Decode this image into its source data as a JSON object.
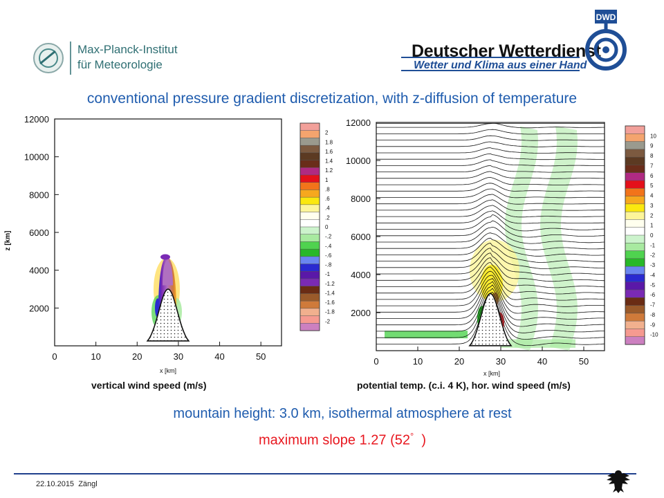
{
  "header": {
    "mpi_name_line1": "Max-Planck-Institut",
    "mpi_name_line2": "für Meteorologie",
    "dwd_name": "Deutscher Wetterdienst",
    "dwd_tagline": "Wetter und Klima aus einer Hand",
    "dwd_badge": "DWD"
  },
  "slide": {
    "title": "conventional pressure gradient discretization, with z-diffusion of temperature",
    "caption_left": "vertical wind speed (m/s)",
    "caption_right": "potential temp. (c.i. 4 K), hor. wind speed (m/s)",
    "info_line1": "mountain height: 3.0 km, isothermal atmosphere at rest",
    "info_line2_prefix": "maximum slope 1.27 (52",
    "info_line2_degree": "°",
    "info_line2_suffix": "  )"
  },
  "footer": {
    "date": "22.10.2015",
    "author": "Zängl"
  },
  "colors": {
    "title_blue": "#1f5cae",
    "highlight_red": "#e8171f",
    "dwd_blue": "#1f4e96",
    "mpi_teal": "#2f6f73"
  },
  "chart_data": [
    {
      "type": "heatmap",
      "panel": "left",
      "title": "",
      "xlabel": "x [km]",
      "ylabel": "z [km]",
      "xlim": [
        0,
        55
      ],
      "ylim": [
        0,
        12000
      ],
      "x_ticks": [
        0,
        10,
        20,
        30,
        40,
        50
      ],
      "y_ticks": [
        2000,
        4000,
        6000,
        8000,
        10000,
        12000
      ],
      "mountain": {
        "center_x_km": 27.5,
        "height_m": 3000
      },
      "colorbar": {
        "labels": [
          "2",
          "1.8",
          "1.6",
          "1.4",
          "1.2",
          "1",
          ".8",
          ".6",
          ".4",
          ".2",
          "0",
          "-.2",
          "-.4",
          "-.6",
          "-.8",
          "-1",
          "-1.2",
          "-1.4",
          "-1.6",
          "-1.8",
          "-2"
        ],
        "colors": [
          "#f2a09a",
          "#f4a46e",
          "#9a9a8e",
          "#7c5a40",
          "#5c3a22",
          "#6a2d1a",
          "#b02a82",
          "#e4101a",
          "#f2741a",
          "#f6a81e",
          "#fbe80f",
          "#fdf59a",
          "#ffffee",
          "#ffffff",
          "#ccf3cc",
          "#a8eaa0",
          "#4fd34f",
          "#28b828",
          "#6a86f0",
          "#2a2ad0",
          "#5a18a8",
          "#7a2ab4",
          "#6a2c14",
          "#9a5a2a",
          "#cf7a3a",
          "#f1b08e",
          "#f69a90",
          "#cc80c0"
        ]
      }
    },
    {
      "type": "heatmap",
      "panel": "right",
      "title": "",
      "xlabel": "x [km]",
      "ylabel": "",
      "xlim": [
        0,
        55
      ],
      "ylim": [
        0,
        12000
      ],
      "x_ticks": [
        0,
        10,
        20,
        30,
        40,
        50
      ],
      "y_ticks": [
        2000,
        4000,
        6000,
        8000,
        10000,
        12000
      ],
      "contour_interval_K": 4,
      "mountain": {
        "center_x_km": 27.5,
        "height_m": 3000
      },
      "colorbar": {
        "labels": [
          "10",
          "9",
          "8",
          "7",
          "6",
          "5",
          "4",
          "3",
          "2",
          "1",
          "0",
          "-1",
          "-2",
          "-3",
          "-4",
          "-5",
          "-6",
          "-7",
          "-8",
          "-9",
          "-10"
        ],
        "colors": [
          "#f2a09a",
          "#f4a46e",
          "#9a9a8e",
          "#7c5a40",
          "#5c3a22",
          "#6a2d1a",
          "#b02a82",
          "#e4101a",
          "#f2741a",
          "#f6a81e",
          "#fbe80f",
          "#fdf59a",
          "#ffffee",
          "#ffffff",
          "#ccf3cc",
          "#a8eaa0",
          "#4fd34f",
          "#28b828",
          "#6a86f0",
          "#2a2ad0",
          "#5a18a8",
          "#7a2ab4",
          "#6a2c14",
          "#9a5a2a",
          "#cf7a3a",
          "#f1b08e",
          "#f69a90",
          "#cc80c0"
        ]
      }
    }
  ]
}
